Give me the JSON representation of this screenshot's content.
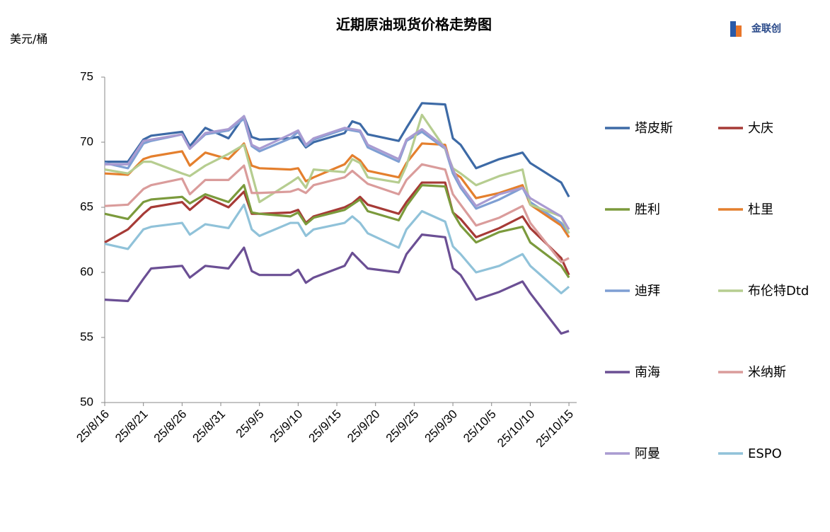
{
  "chart_data": {
    "type": "line",
    "title": "近期原油现货价格走势图",
    "y_label": "美元/桶",
    "logo": "金联创",
    "x": [
      "25/8/16",
      "25/8/19",
      "25/8/21",
      "25/8/22",
      "25/8/26",
      "25/8/27",
      "25/8/29",
      "25/9/1",
      "25/9/3",
      "25/9/4",
      "25/9/5",
      "25/9/9",
      "25/9/10",
      "25/9/11",
      "25/9/12",
      "25/9/16",
      "25/9/17",
      "25/9/18",
      "25/9/19",
      "25/9/23",
      "25/9/24",
      "25/9/26",
      "25/9/29",
      "25/9/30",
      "25/10/1",
      "25/10/3",
      "25/10/6",
      "25/10/9",
      "25/10/10",
      "25/10/14",
      "25/10/15"
    ],
    "xlim": [
      "25/8/16",
      "25/10/16"
    ],
    "xticks": [
      "25/8/16",
      "25/8/21",
      "25/8/26",
      "25/8/31",
      "25/9/5",
      "25/9/10",
      "25/9/15",
      "25/9/20",
      "25/9/25",
      "25/9/30",
      "25/10/5",
      "25/10/10",
      "25/10/15"
    ],
    "ylim": [
      50,
      75
    ],
    "yticks": [
      50,
      55,
      60,
      65,
      70,
      75
    ],
    "grid": false,
    "legend": "right",
    "series": [
      {
        "name": "塔皮斯",
        "color": "#3d6aa6",
        "values": [
          68.5,
          68.5,
          70.2,
          70.5,
          70.8,
          69.7,
          71.1,
          70.3,
          72,
          70.4,
          70.2,
          70.3,
          70.4,
          69.6,
          70,
          70.7,
          71.6,
          71.4,
          70.6,
          70.1,
          71.1,
          73,
          72.9,
          70.3,
          69.8,
          68,
          68.7,
          69.2,
          68.4,
          66.9,
          65.8
        ]
      },
      {
        "name": "大庆",
        "color": "#a63a36",
        "values": [
          62.3,
          63.3,
          64.5,
          65,
          65.4,
          64.8,
          65.8,
          65,
          66.2,
          64.5,
          64.5,
          64.6,
          64.8,
          63.8,
          64.3,
          65,
          65.3,
          65.8,
          65.2,
          64.5,
          65.4,
          66.9,
          66.9,
          64.6,
          64.1,
          62.7,
          63.4,
          64.3,
          63.4,
          61.1,
          59.8
        ]
      },
      {
        "name": "胜利",
        "color": "#7b9a3c",
        "values": [
          64.5,
          64.1,
          65.4,
          65.6,
          65.8,
          65.3,
          66,
          65.4,
          66.7,
          64.6,
          64.5,
          64.3,
          64.6,
          63.7,
          64.2,
          64.8,
          65.2,
          65.6,
          64.7,
          64,
          65.1,
          66.7,
          66.6,
          64.6,
          63.6,
          62.3,
          63.1,
          63.5,
          62.3,
          60.5,
          59.6
        ]
      },
      {
        "name": "杜里",
        "color": "#e47f2d",
        "values": [
          67.6,
          67.5,
          68.7,
          68.9,
          69.3,
          68.2,
          69.2,
          68.7,
          69.9,
          68.2,
          68,
          67.9,
          68,
          67,
          67.3,
          68.3,
          69,
          68.6,
          67.8,
          67.3,
          68.4,
          69.9,
          69.8,
          67.7,
          67.3,
          65.7,
          66.1,
          66.7,
          65.2,
          63.6,
          62.7
        ]
      },
      {
        "name": "迪拜",
        "color": "#7f9fd3",
        "values": [
          68.4,
          68,
          69.9,
          70.1,
          70.6,
          69.5,
          70.6,
          70.9,
          71.8,
          69.7,
          69.3,
          70.3,
          70.8,
          69.7,
          70.2,
          71,
          70.9,
          70.8,
          69.6,
          68.5,
          70.1,
          70.8,
          69.5,
          67.6,
          66.5,
          64.9,
          65.6,
          66.5,
          65.4,
          63.8,
          63
        ]
      },
      {
        "name": "布伦特Dtd",
        "color": "#b6cd90",
        "values": [
          67.9,
          67.6,
          68.5,
          68.5,
          67.6,
          67.4,
          68.2,
          69.1,
          69.8,
          67.6,
          65.4,
          66.9,
          67.3,
          66.5,
          67.9,
          67.7,
          68.7,
          68.4,
          67.3,
          66.9,
          68.2,
          72.1,
          69.5,
          68,
          67.6,
          66.7,
          67.4,
          67.9,
          65.2,
          64.3,
          63
        ]
      },
      {
        "name": "南海",
        "color": "#6b4f94",
        "values": [
          57.9,
          57.8,
          59.5,
          60.3,
          60.5,
          59.6,
          60.5,
          60.3,
          61.9,
          60.1,
          59.8,
          59.8,
          60.2,
          59.2,
          59.6,
          60.5,
          61.5,
          60.9,
          60.3,
          60,
          61.4,
          62.9,
          62.7,
          60.3,
          59.8,
          57.9,
          58.5,
          59.3,
          58.4,
          55.3,
          55.5
        ]
      },
      {
        "name": "米纳斯",
        "color": "#da9c9b",
        "values": [
          65.1,
          65.2,
          66.4,
          66.7,
          67.2,
          66,
          67.1,
          67.1,
          68.2,
          66.1,
          66.1,
          66.2,
          66.4,
          66.1,
          66.7,
          67.3,
          67.8,
          67.3,
          66.8,
          66,
          67.1,
          68.3,
          67.9,
          66,
          65.2,
          63.6,
          64.2,
          65.1,
          63.8,
          60.8,
          61.1
        ]
      },
      {
        "name": "阿曼",
        "color": "#a99bd1",
        "values": [
          68.3,
          68.3,
          70.1,
          70.2,
          70.6,
          69.5,
          70.7,
          71,
          72,
          69.8,
          69.5,
          70.6,
          70.9,
          69.8,
          70.3,
          71.1,
          71,
          70.9,
          69.8,
          68.7,
          70.2,
          71,
          69.6,
          67.9,
          66.7,
          65.1,
          66,
          66.5,
          65.7,
          64.3,
          63.3
        ]
      },
      {
        "name": "ESPO",
        "color": "#90c2d9",
        "values": [
          62.2,
          61.8,
          63.3,
          63.5,
          63.8,
          62.9,
          63.7,
          63.4,
          65.2,
          63.3,
          62.8,
          63.8,
          63.8,
          62.8,
          63.3,
          63.8,
          64.3,
          63.8,
          63,
          61.9,
          63.3,
          64.7,
          63.9,
          62,
          61.4,
          60,
          60.5,
          61.4,
          60.5,
          58.4,
          58.9
        ]
      }
    ]
  }
}
